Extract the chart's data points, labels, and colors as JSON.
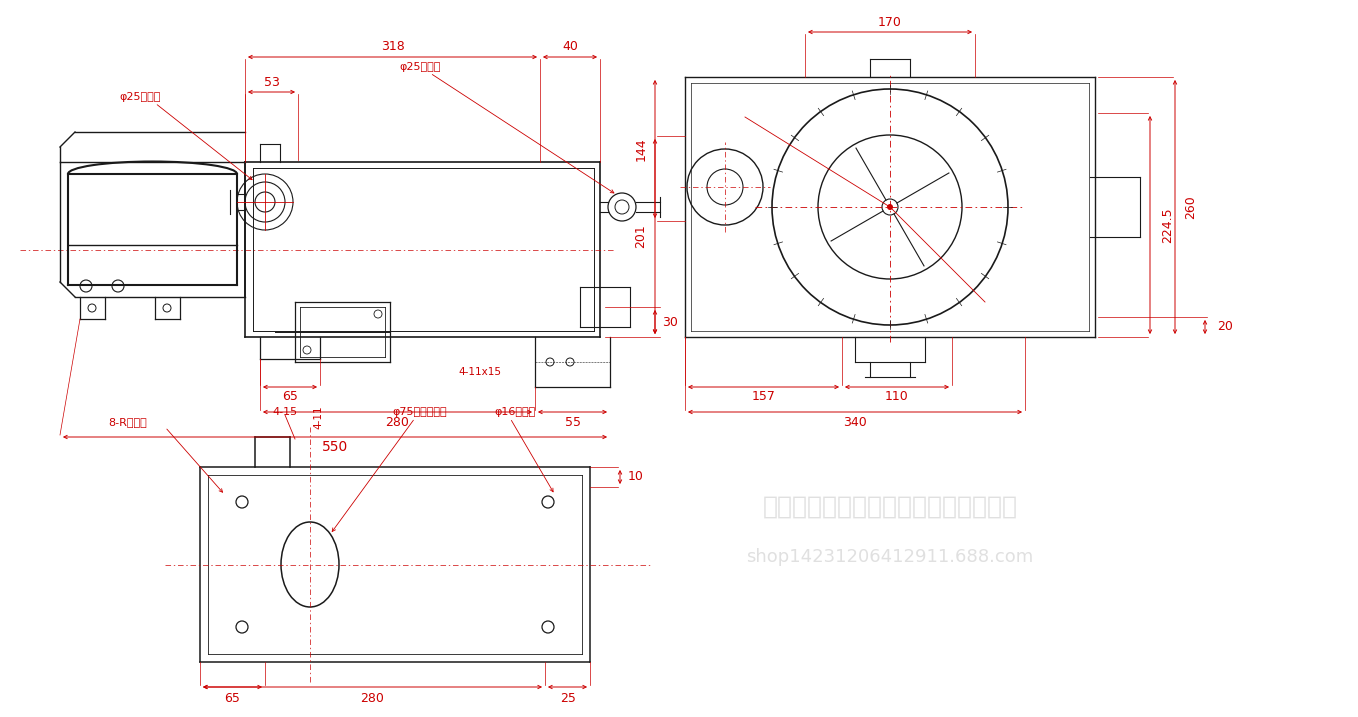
{
  "bg_color": "#ffffff",
  "line_color": "#1a1a1a",
  "dim_color": "#cc0000",
  "fig_width": 13.58,
  "fig_height": 7.17,
  "dpi": 100,
  "watermark": "湖北宏业永盛汽车加热器股份有限公司",
  "shop": "shop14231206412911.688.com",
  "labels": {
    "water_in": "φ25进水口",
    "water_out": "φ25出水口",
    "fix_holes": "8-R固定孔",
    "dim_415": "4-15",
    "dim_411": "4-11",
    "exhaust": "φ75排烟口外径",
    "drain": "φ16放水口",
    "mount_holes": "4-11x15",
    "dim_318": "318",
    "dim_40": "40",
    "dim_53": "53",
    "dim_30": "30",
    "dim_65": "65",
    "dim_280": "280",
    "dim_55": "55",
    "dim_550": "550",
    "dim_201": "201",
    "dim_144": "144",
    "dim_1705": "170",
    "dim_2245": "224.5",
    "dim_260": "260",
    "dim_157": "157",
    "dim_110": "110",
    "dim_340": "340",
    "dim_20": "20",
    "dim_65b": "65",
    "dim_280b": "280",
    "dim_25": "25",
    "dim_10": "10"
  }
}
